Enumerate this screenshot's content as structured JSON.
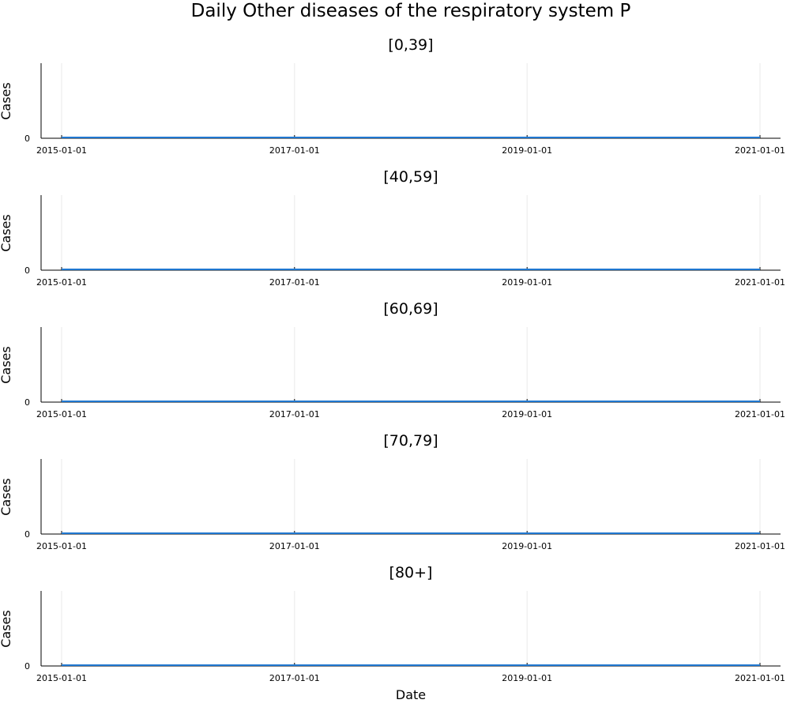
{
  "figure": {
    "title": "Daily Other diseases of the respiratory system P",
    "xlabel": "Date",
    "line_color": "#1f77d0"
  },
  "chart_data": [
    {
      "type": "line",
      "title": "[0,39]",
      "xlabel": "",
      "ylabel": "Cases",
      "x_tick_labels": [
        "2015-01-01",
        "2017-01-01",
        "2019-01-01",
        "2021-01-01"
      ],
      "y_tick_labels": [
        "0"
      ],
      "xlim": [
        "2015-01-01",
        "2021-01-01"
      ],
      "ylim": [
        0,
        1
      ],
      "grid": true,
      "series": [
        {
          "x": [
            "2015-01-01",
            "2021-01-01"
          ],
          "values": [
            0,
            0
          ]
        }
      ]
    },
    {
      "type": "line",
      "title": "[40,59]",
      "xlabel": "",
      "ylabel": "Cases",
      "x_tick_labels": [
        "2015-01-01",
        "2017-01-01",
        "2019-01-01",
        "2021-01-01"
      ],
      "y_tick_labels": [
        "0"
      ],
      "xlim": [
        "2015-01-01",
        "2021-01-01"
      ],
      "ylim": [
        0,
        1
      ],
      "grid": true,
      "series": [
        {
          "x": [
            "2015-01-01",
            "2021-01-01"
          ],
          "values": [
            0,
            0
          ]
        }
      ]
    },
    {
      "type": "line",
      "title": "[60,69]",
      "xlabel": "",
      "ylabel": "Cases",
      "x_tick_labels": [
        "2015-01-01",
        "2017-01-01",
        "2019-01-01",
        "2021-01-01"
      ],
      "y_tick_labels": [
        "0"
      ],
      "xlim": [
        "2015-01-01",
        "2021-01-01"
      ],
      "ylim": [
        0,
        1
      ],
      "grid": true,
      "series": [
        {
          "x": [
            "2015-01-01",
            "2021-01-01"
          ],
          "values": [
            0,
            0
          ]
        }
      ]
    },
    {
      "type": "line",
      "title": "[70,79]",
      "xlabel": "",
      "ylabel": "Cases",
      "x_tick_labels": [
        "2015-01-01",
        "2017-01-01",
        "2019-01-01",
        "2021-01-01"
      ],
      "y_tick_labels": [
        "0"
      ],
      "xlim": [
        "2015-01-01",
        "2021-01-01"
      ],
      "ylim": [
        0,
        1
      ],
      "grid": true,
      "series": [
        {
          "x": [
            "2015-01-01",
            "2021-01-01"
          ],
          "values": [
            0,
            0
          ]
        }
      ]
    },
    {
      "type": "line",
      "title": "[80+]",
      "xlabel": "Date",
      "ylabel": "Cases",
      "x_tick_labels": [
        "2015-01-01",
        "2017-01-01",
        "2019-01-01",
        "2021-01-01"
      ],
      "y_tick_labels": [
        "0"
      ],
      "xlim": [
        "2015-01-01",
        "2021-01-01"
      ],
      "ylim": [
        0,
        1
      ],
      "grid": true,
      "series": [
        {
          "x": [
            "2015-01-01",
            "2021-01-01"
          ],
          "values": [
            0,
            0
          ]
        }
      ]
    }
  ]
}
